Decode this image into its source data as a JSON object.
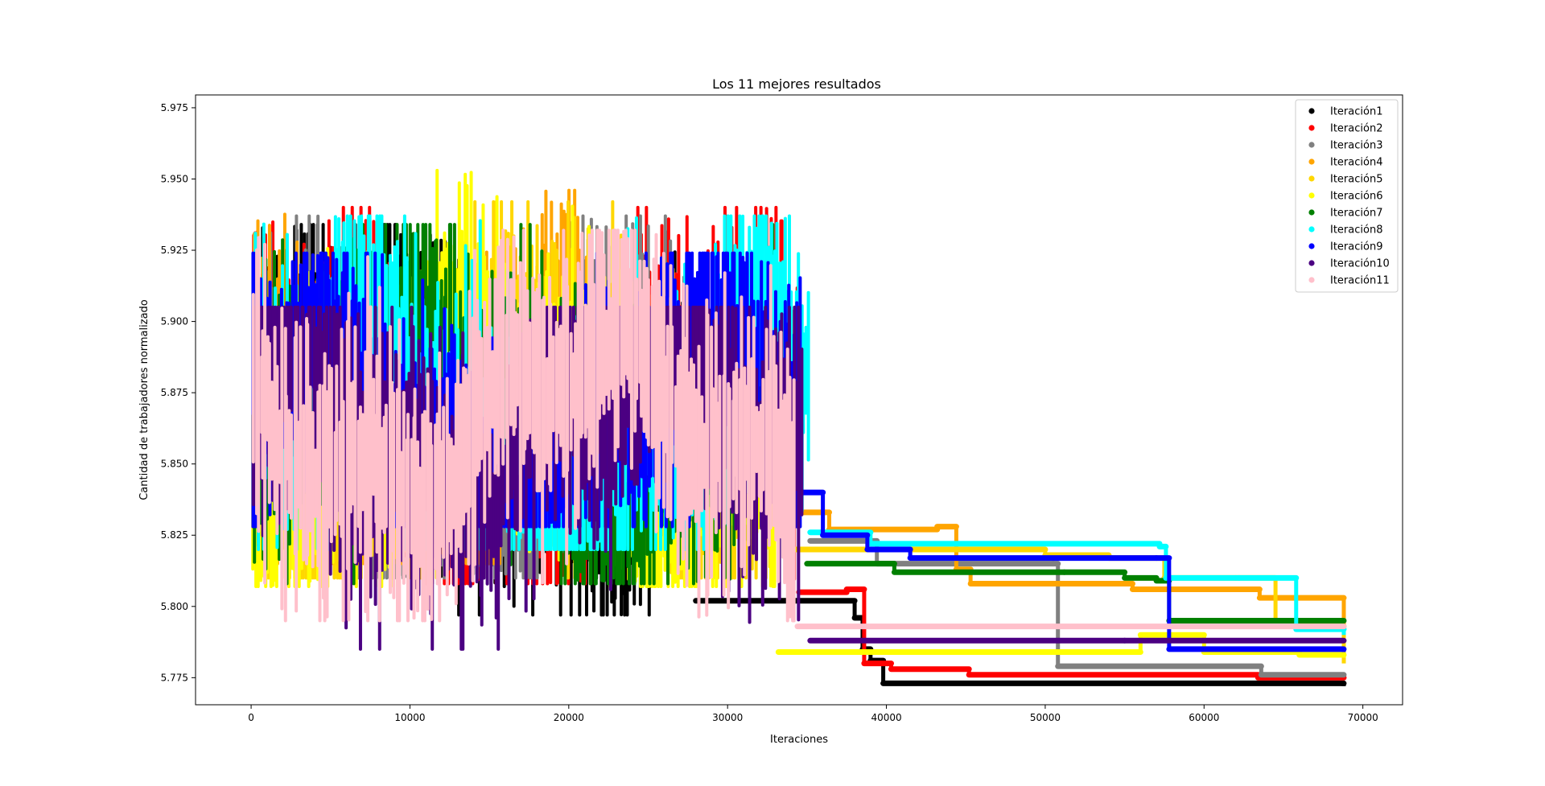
{
  "chart_data": {
    "type": "scatter",
    "title": "Los 11 mejores resultados",
    "xlabel": "Iteraciones",
    "ylabel": "Cantidad de trabajadores normalizado",
    "xlim": [
      -3500,
      72500
    ],
    "ylim": [
      5.7655,
      5.9795
    ],
    "x_ticks": [
      0,
      10000,
      20000,
      30000,
      40000,
      50000,
      60000,
      70000
    ],
    "x_tick_labels": [
      "0",
      "10000",
      "20000",
      "30000",
      "40000",
      "50000",
      "60000",
      "70000"
    ],
    "y_ticks": [
      5.775,
      5.8,
      5.825,
      5.85,
      5.875,
      5.9,
      5.925,
      5.95,
      5.975
    ],
    "y_tick_labels": [
      "5.775",
      "5.800",
      "5.825",
      "5.850",
      "5.875",
      "5.900",
      "5.925",
      "5.950",
      "5.975"
    ],
    "grid": false,
    "legend_position": "top-right",
    "series": [
      {
        "name": "Iteración1",
        "color": "#000000",
        "noisy_until": 27800,
        "noise_low": 5.797,
        "noise_high": 5.934,
        "steps": [
          [
            28000,
            5.802
          ],
          [
            38000,
            5.796
          ],
          [
            38500,
            5.785
          ],
          [
            39000,
            5.781
          ],
          [
            39800,
            5.773
          ],
          [
            68800,
            5.772
          ]
        ]
      },
      {
        "name": "Iteración2",
        "color": "#ff0000",
        "noisy_until": 34500,
        "noise_low": 5.808,
        "noise_high": 5.94,
        "steps": [
          [
            34500,
            5.805
          ],
          [
            37500,
            5.806
          ],
          [
            38600,
            5.78
          ],
          [
            40300,
            5.778
          ],
          [
            45200,
            5.776
          ],
          [
            63400,
            5.775
          ],
          [
            68800,
            5.775
          ]
        ]
      },
      {
        "name": "Iteración3",
        "color": "#808080",
        "noisy_until": 27000,
        "noise_low": 5.81,
        "noise_high": 5.937,
        "steps": [
          [
            35200,
            5.823
          ],
          [
            39400,
            5.815
          ],
          [
            50500,
            5.815
          ],
          [
            50800,
            5.779
          ],
          [
            63600,
            5.776
          ],
          [
            68800,
            5.776
          ]
        ]
      },
      {
        "name": "Iteración4",
        "color": "#ffa500",
        "noisy_until": 22000,
        "noise_low": 5.815,
        "noise_high": 5.946,
        "steps": [
          [
            34200,
            5.833
          ],
          [
            36400,
            5.827
          ],
          [
            43200,
            5.828
          ],
          [
            44400,
            5.813
          ],
          [
            45300,
            5.808
          ],
          [
            51000,
            5.808
          ],
          [
            55500,
            5.806
          ],
          [
            63500,
            5.803
          ],
          [
            68800,
            5.793
          ]
        ]
      },
      {
        "name": "Iteración5",
        "color": "#ffd700",
        "noisy_until": 33000,
        "noise_low": 5.81,
        "noise_high": 5.942,
        "steps": [
          [
            34000,
            5.82
          ],
          [
            50000,
            5.818
          ],
          [
            54000,
            5.817
          ],
          [
            57500,
            5.81
          ],
          [
            62000,
            5.81
          ],
          [
            64500,
            5.795
          ],
          [
            65800,
            5.793
          ],
          [
            68800,
            5.78
          ]
        ]
      },
      {
        "name": "Iteración6",
        "color": "#ffff00",
        "noisy_until": 33200,
        "noise_low": 5.807,
        "noise_high": 5.953,
        "steps": [
          [
            33200,
            5.784
          ],
          [
            40000,
            5.784
          ],
          [
            56000,
            5.79
          ],
          [
            60000,
            5.784
          ],
          [
            66000,
            5.783
          ],
          [
            68800,
            5.782
          ]
        ]
      },
      {
        "name": "Iteración7",
        "color": "#008000",
        "noisy_until": 33000,
        "noise_low": 5.808,
        "noise_high": 5.934,
        "steps": [
          [
            35000,
            5.815
          ],
          [
            40500,
            5.812
          ],
          [
            51200,
            5.812
          ],
          [
            55000,
            5.81
          ],
          [
            57000,
            5.809
          ],
          [
            57800,
            5.795
          ],
          [
            68800,
            5.795
          ]
        ]
      },
      {
        "name": "Iteración8",
        "color": "#00ffff",
        "noisy_until": 35200,
        "noise_low": 5.82,
        "noise_high": 5.937,
        "steps": [
          [
            35200,
            5.826
          ],
          [
            39000,
            5.822
          ],
          [
            57200,
            5.821
          ],
          [
            57600,
            5.81
          ],
          [
            62200,
            5.81
          ],
          [
            65800,
            5.792
          ],
          [
            68800,
            5.79
          ]
        ]
      },
      {
        "name": "Iteración9",
        "color": "#0000ff",
        "noisy_until": 34600,
        "noise_low": 5.828,
        "noise_high": 5.924,
        "steps": [
          [
            34600,
            5.84
          ],
          [
            36000,
            5.825
          ],
          [
            38800,
            5.82
          ],
          [
            41500,
            5.817
          ],
          [
            57000,
            5.817
          ],
          [
            57800,
            5.785
          ],
          [
            68800,
            5.784
          ]
        ]
      },
      {
        "name": "Iteración10",
        "color": "#4b0082",
        "noisy_until": 34800,
        "noise_low": 5.785,
        "noise_high": 5.905,
        "steps": [
          [
            35200,
            5.788
          ],
          [
            55000,
            5.788
          ],
          [
            68800,
            5.788
          ]
        ]
      },
      {
        "name": "Iteración11",
        "color": "#ffc0cb",
        "noisy_until": 34400,
        "noise_low": 5.795,
        "noise_high": 5.932,
        "steps": [
          [
            34400,
            5.793
          ],
          [
            68800,
            5.793
          ]
        ]
      }
    ]
  }
}
